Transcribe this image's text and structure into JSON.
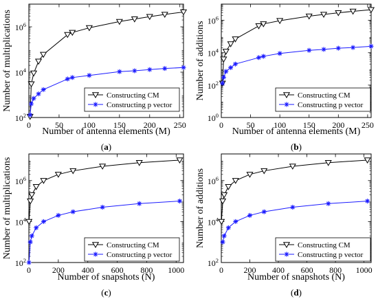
{
  "chart_data": [
    {
      "type": "line",
      "panel_label": "(a)",
      "xlabel": "Number of antenna elements (M)",
      "ylabel": "Number of multiplications",
      "yscale": "log",
      "xlim": [
        0,
        256
      ],
      "ylim": [
        100,
        10000000
      ],
      "xticks": [
        0,
        50,
        100,
        150,
        200,
        250
      ],
      "yticks": [
        {
          "v": 100,
          "t": "10^2"
        },
        {
          "v": 10000,
          "t": "10^4"
        },
        {
          "v": 1000000,
          "t": "10^6"
        }
      ],
      "legend": {
        "position": "center-right"
      },
      "series": [
        {
          "name": "Constructing CM",
          "color": "#000000",
          "marker": "triangle-down",
          "x": [
            2,
            4,
            8,
            16,
            24,
            64,
            72,
            100,
            150,
            175,
            200,
            225,
            256
          ],
          "y": [
            110,
            3000,
            9000,
            30000,
            60000,
            450000,
            560000,
            900000,
            1700000,
            2200000,
            2800000,
            3500000,
            4500000
          ]
        },
        {
          "name": "Constructing  p vector",
          "color": "#1a1aff",
          "marker": "star",
          "x": [
            2,
            4,
            8,
            16,
            24,
            64,
            72,
            100,
            150,
            175,
            200,
            225,
            256
          ],
          "y": [
            130,
            400,
            700,
            1100,
            1700,
            5000,
            5800,
            7200,
            10500,
            11500,
            13000,
            14500,
            16000
          ]
        }
      ]
    },
    {
      "type": "line",
      "panel_label": "(b)",
      "xlabel": "Number of antenna elements (M)",
      "ylabel": "Number of additions",
      "yscale": "log",
      "xlim": [
        0,
        256
      ],
      "ylim": [
        1,
        10000000
      ],
      "xticks": [
        0,
        50,
        100,
        150,
        200,
        250
      ],
      "yticks": [
        {
          "v": 1,
          "t": "10^0"
        },
        {
          "v": 100,
          "t": "10^2"
        },
        {
          "v": 10000,
          "t": "10^4"
        },
        {
          "v": 1000000,
          "t": "10^6"
        }
      ],
      "legend": {
        "position": "center-right"
      },
      "series": [
        {
          "name": "Constructing CM",
          "color": "#000000",
          "marker": "triangle-down",
          "x": [
            2,
            4,
            8,
            16,
            24,
            64,
            72,
            100,
            150,
            175,
            200,
            225,
            256
          ],
          "y": [
            130,
            4000,
            12000,
            35000,
            70000,
            450000,
            600000,
            950000,
            1800000,
            2300000,
            2900000,
            3600000,
            4500000
          ]
        },
        {
          "name": "Constructing  p vector",
          "color": "#1a1aff",
          "marker": "star",
          "x": [
            2,
            4,
            8,
            16,
            24,
            64,
            72,
            100,
            150,
            175,
            200,
            225,
            256
          ],
          "y": [
            130,
            300,
            700,
            1200,
            2000,
            5000,
            6000,
            9000,
            14000,
            16000,
            19000,
            21000,
            25000
          ]
        }
      ]
    },
    {
      "type": "line",
      "panel_label": "(c)",
      "xlabel": "Number of snapshots (N)",
      "ylabel": "Number of multiplications",
      "yscale": "log",
      "xlim": [
        0,
        1050
      ],
      "ylim": [
        100,
        20000000
      ],
      "xticks": [
        0,
        200,
        400,
        600,
        800,
        1000
      ],
      "yticks": [
        {
          "v": 100,
          "t": "10^2"
        },
        {
          "v": 10000,
          "t": "10^4"
        },
        {
          "v": 1000000,
          "t": "10^6"
        }
      ],
      "legend": {
        "position": "bottom-right"
      },
      "series": [
        {
          "name": "Constructing CM",
          "color": "#000000",
          "marker": "triangle-down",
          "x": [
            1,
            10,
            20,
            50,
            100,
            200,
            300,
            500,
            750,
            1024
          ],
          "y": [
            10000,
            100000,
            200000,
            500000,
            1000000,
            2000000,
            3000000,
            5000000,
            7500000,
            10000000
          ]
        },
        {
          "name": "Constructing  p vector",
          "color": "#1a1aff",
          "marker": "star",
          "x": [
            1,
            10,
            20,
            50,
            100,
            200,
            300,
            500,
            750,
            1024
          ],
          "y": [
            100,
            1000,
            2000,
            5000,
            10000,
            20000,
            30000,
            50000,
            75000,
            100000
          ]
        }
      ]
    },
    {
      "type": "line",
      "panel_label": "(d)",
      "xlabel": "Number of snapshots (N)",
      "ylabel": "Number of additions",
      "yscale": "log",
      "xlim": [
        0,
        1050
      ],
      "ylim": [
        100,
        20000000
      ],
      "xticks": [
        0,
        200,
        400,
        600,
        800,
        1000
      ],
      "yticks": [
        {
          "v": 100,
          "t": "10^2"
        },
        {
          "v": 10000,
          "t": "10^4"
        },
        {
          "v": 1000000,
          "t": "10^6"
        }
      ],
      "legend": {
        "position": "bottom-right"
      },
      "series": [
        {
          "name": "Constructing CM",
          "color": "#000000",
          "marker": "triangle-down",
          "x": [
            1,
            10,
            20,
            50,
            100,
            200,
            300,
            500,
            750,
            1024
          ],
          "y": [
            10000,
            100000,
            200000,
            500000,
            1000000,
            2000000,
            3000000,
            5000000,
            7500000,
            10000000
          ]
        },
        {
          "name": "Constructing  p vector",
          "color": "#1a1aff",
          "marker": "star",
          "x": [
            10,
            20,
            50,
            100,
            200,
            300,
            500,
            750,
            1024
          ],
          "y": [
            1000,
            2000,
            5000,
            10000,
            20000,
            30000,
            50000,
            75000,
            100000
          ]
        }
      ]
    }
  ]
}
